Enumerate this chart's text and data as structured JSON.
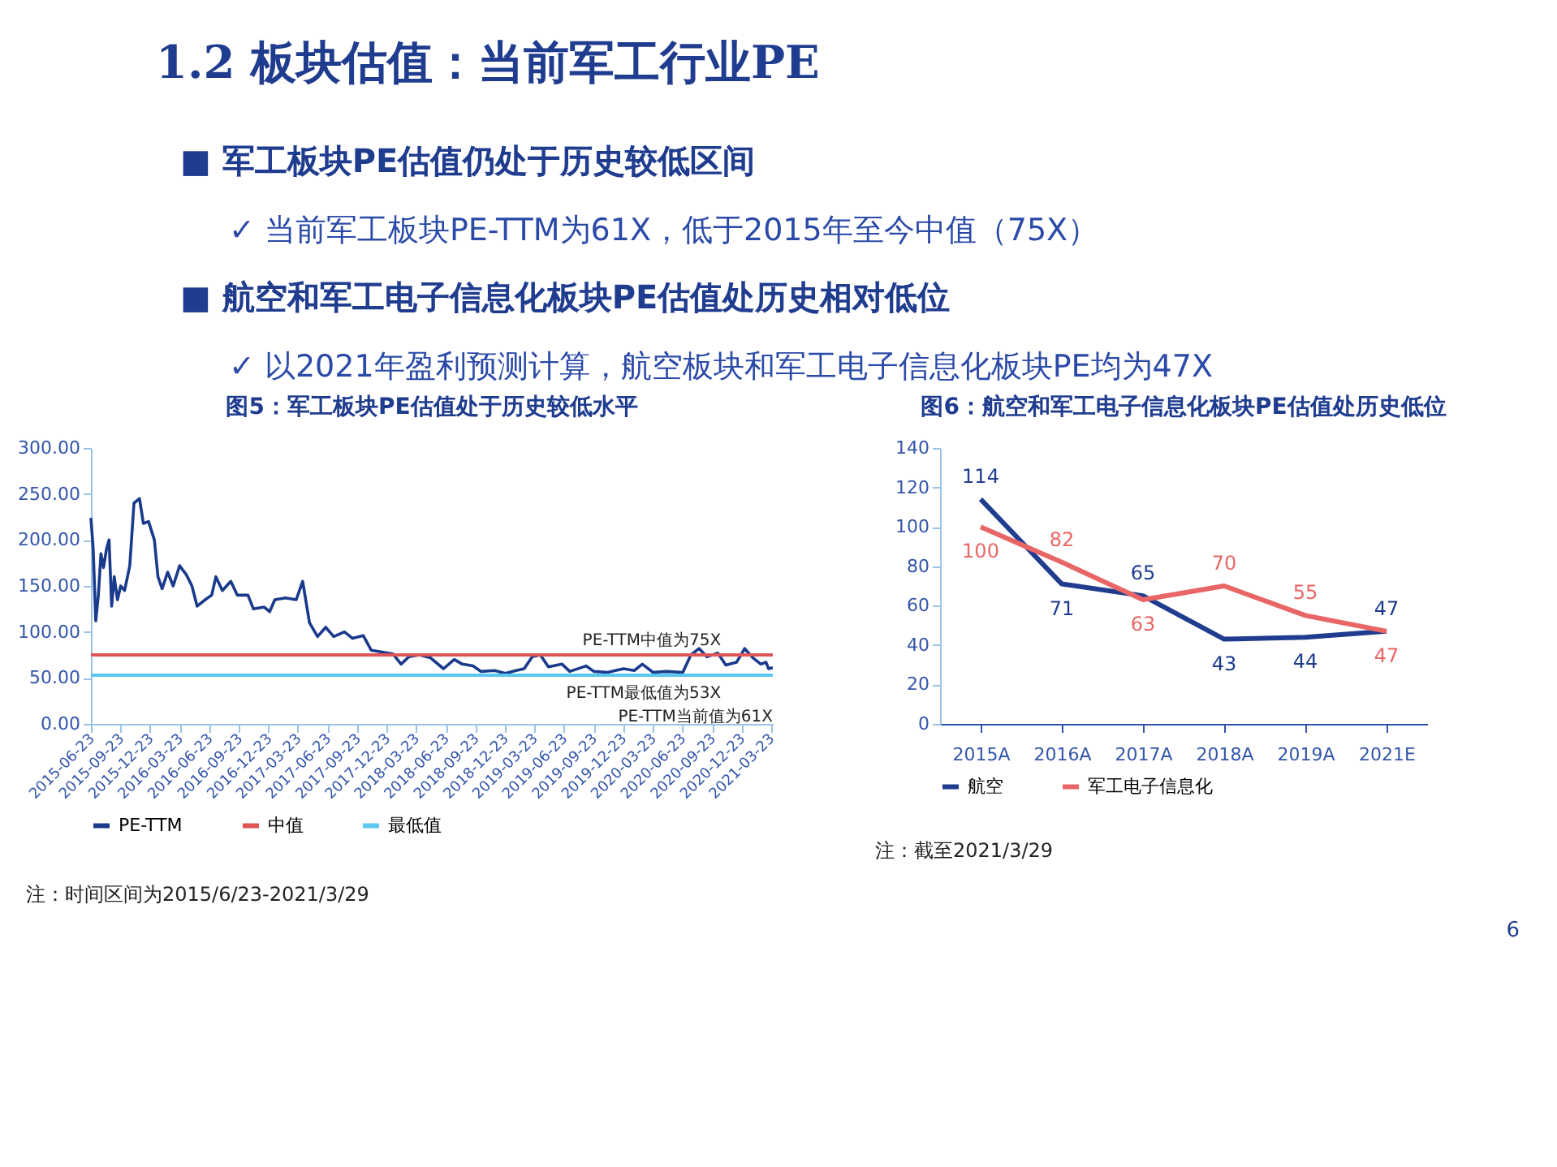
{
  "chart_data": [
    {
      "type": "line",
      "title": "图5：军工板块PE估值处于历史较低水平",
      "xlim": [
        "2015-06-23",
        "2021-03-29"
      ],
      "xticks": [
        "2015-06-23",
        "2015-09-23",
        "2015-12-23",
        "2016-03-23",
        "2016-06-23",
        "2016-09-23",
        "2016-12-23",
        "2017-03-23",
        "2017-06-23",
        "2017-09-23",
        "2017-12-23",
        "2018-03-23",
        "2018-06-23",
        "2018-09-23",
        "2018-12-23",
        "2019-03-23",
        "2019-06-23",
        "2019-09-23",
        "2019-12-23",
        "2020-03-23",
        "2020-06-23",
        "2020-09-23",
        "2020-12-23",
        "2021-03-23"
      ],
      "ylim": [
        0,
        300
      ],
      "yticks": [
        {
          "value": 0,
          "label": "0.00"
        },
        {
          "value": 50,
          "label": "50.00"
        },
        {
          "value": 100,
          "label": "100.00"
        },
        {
          "value": 150,
          "label": "150.00"
        },
        {
          "value": 200,
          "label": "200.00"
        },
        {
          "value": 250,
          "label": "250.00"
        },
        {
          "value": 300,
          "label": "300.00"
        }
      ],
      "legend": "bottom",
      "series": [
        {
          "name": "PE-TTM",
          "color": "#1a3a8c",
          "x": [
            "2015-06-23",
            "2015-06-30",
            "2015-07-08",
            "2015-07-16",
            "2015-07-24",
            "2015-08-01",
            "2015-08-10",
            "2015-08-18",
            "2015-08-26",
            "2015-09-03",
            "2015-09-13",
            "2015-09-23",
            "2015-10-05",
            "2015-10-21",
            "2015-11-03",
            "2015-11-20",
            "2015-12-02",
            "2015-12-18",
            "2016-01-05",
            "2016-01-16",
            "2016-01-29",
            "2016-02-15",
            "2016-03-03",
            "2016-03-23",
            "2016-04-13",
            "2016-04-30",
            "2016-05-16",
            "2016-06-10",
            "2016-06-30",
            "2016-07-13",
            "2016-08-02",
            "2016-08-28",
            "2016-09-17",
            "2016-10-20",
            "2016-11-06",
            "2016-12-09",
            "2016-12-26",
            "2017-01-11",
            "2017-02-13",
            "2017-03-18",
            "2017-04-07",
            "2017-04-28",
            "2017-05-23",
            "2017-06-17",
            "2017-07-12",
            "2017-08-14",
            "2017-09-08",
            "2017-10-11",
            "2017-11-05",
            "2017-12-08",
            "2018-01-11",
            "2018-02-05",
            "2018-03-01",
            "2018-04-03",
            "2018-05-06",
            "2018-06-16",
            "2018-07-19",
            "2018-08-13",
            "2018-09-15",
            "2018-10-10",
            "2018-11-21",
            "2018-12-24",
            "2019-01-26",
            "2019-02-20",
            "2019-03-17",
            "2019-04-11",
            "2019-05-06",
            "2019-06-17",
            "2019-07-11",
            "2019-08-30",
            "2019-09-24",
            "2019-11-05",
            "2019-12-24",
            "2020-01-26",
            "2020-02-20",
            "2020-03-24",
            "2020-05-05",
            "2020-06-24",
            "2020-07-19",
            "2020-08-13",
            "2020-09-06",
            "2020-10-10",
            "2020-11-04",
            "2020-12-07",
            "2021-01-01",
            "2021-01-26",
            "2021-02-20",
            "2021-03-08",
            "2021-03-16",
            "2021-03-29"
          ],
          "values": [
            224,
            190,
            112,
            140,
            185,
            170,
            190,
            200,
            128,
            160,
            135,
            150,
            145,
            172,
            240,
            245,
            218,
            220,
            200,
            160,
            147,
            165,
            150,
            172,
            162,
            150,
            128,
            135,
            140,
            160,
            145,
            155,
            140,
            140,
            125,
            127,
            122,
            135,
            137,
            135,
            155,
            110,
            95,
            105,
            95,
            100,
            93,
            96,
            80,
            78,
            76,
            65,
            73,
            75,
            72,
            60,
            70,
            65,
            63,
            57,
            58,
            55,
            58,
            60,
            73,
            75,
            62,
            65,
            57,
            63,
            57,
            56,
            60,
            58,
            65,
            56,
            57,
            56,
            75,
            82,
            73,
            77,
            64,
            67,
            82,
            72,
            65,
            67,
            60,
            61
          ]
        },
        {
          "name": "中值",
          "color": "#e05555",
          "x": [
            "2015-06-23",
            "2021-03-29"
          ],
          "values": [
            75,
            75
          ]
        },
        {
          "name": "最低值",
          "color": "#5bc8f0",
          "x": [
            "2015-06-23",
            "2021-03-29"
          ],
          "values": [
            53,
            53
          ]
        }
      ],
      "annotations": [
        {
          "text": "PE-TTM中值为75X",
          "x": "2020-10-20",
          "y": 75
        },
        {
          "text": "PE-TTM最低值为53X",
          "x": "2020-10-20",
          "y": 53
        },
        {
          "text": "PE-TTM当前值为61X",
          "x": "2021-03-29",
          "y": 61
        },
        "注：时间区间为2015/6/23-2021/3/29"
      ]
    },
    {
      "type": "line",
      "title": "图6：航空和军工电子信息化板块PE估值处历史低位",
      "categories": [
        "2015A",
        "2016A",
        "2017A",
        "2018A",
        "2019A",
        "2021E"
      ],
      "ylim": [
        0,
        140
      ],
      "yticks": [
        0,
        20,
        40,
        60,
        80,
        100,
        120,
        140
      ],
      "legend": "bottom",
      "data_labels": true,
      "series": [
        {
          "name": "航空",
          "color": "#1f3c8f",
          "values": [
            114,
            71,
            65,
            43,
            44,
            47
          ]
        },
        {
          "name": "军工电子信息化",
          "color": "#e96666",
          "values": [
            100,
            82,
            63,
            70,
            55,
            47
          ]
        }
      ],
      "annotations": [
        "注：截至2021/3/29"
      ]
    },
    {
      "type": "other",
      "title": "1.2 板块估值：当前军工行业PE",
      "annotations": [
        "■ 军工板块PE估值仍处于历史较低区间",
        "✓ 当前军工板块PE-TTM为61X，低于2015年至今中值（75X）",
        "■ 航空和军工电子信息化板块PE估值处历史相对低位",
        "✓ 以2021年盈利预测计算，航空板块和军工电子信息化板块PE均为47X",
        "6"
      ]
    }
  ]
}
